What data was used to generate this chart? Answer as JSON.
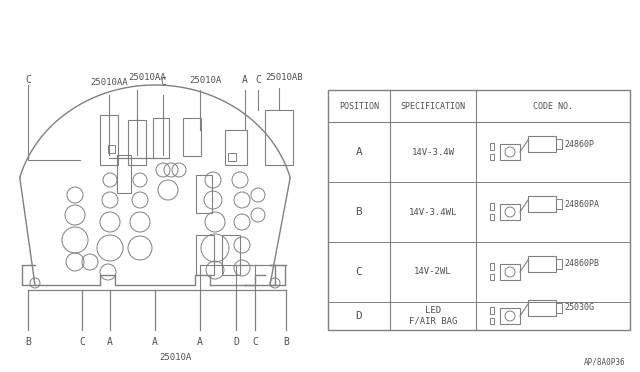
{
  "line_color": "#808080",
  "text_color": "#505050",
  "bottom_code": "AP/8A0P36",
  "positions": [
    "A",
    "B",
    "C",
    "D"
  ],
  "specs": [
    "14V-3.4W",
    "14V-3.4WL",
    "14V-2WL",
    "LED\nF/AIR BAG"
  ],
  "codes": [
    "24860P",
    "24860PA",
    "24860PB",
    "25030G"
  ]
}
